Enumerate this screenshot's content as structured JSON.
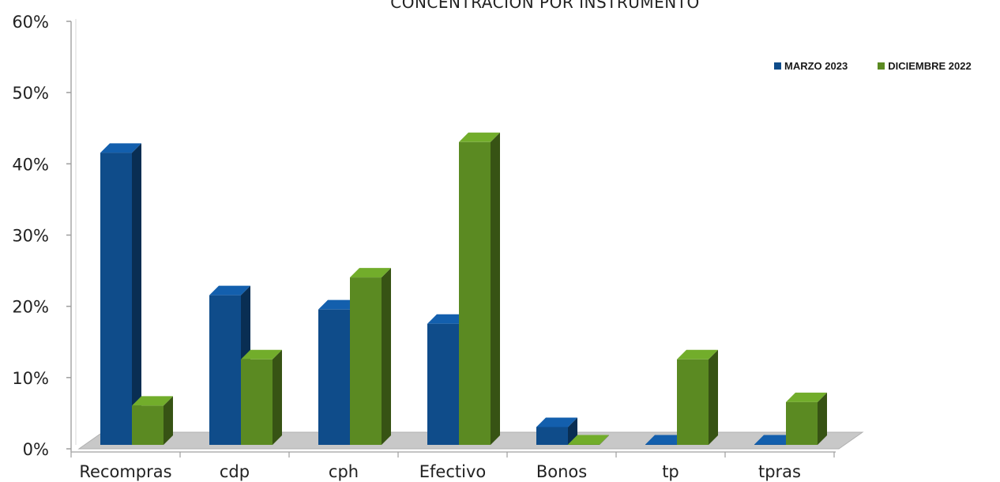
{
  "chart_data": {
    "type": "bar",
    "title": "CONCENTRACIÓN POR INSTRUMENTO",
    "categories": [
      "Recompras",
      "cdp",
      "cph",
      "Efectivo",
      "Bonos",
      "tp",
      "tpras"
    ],
    "series": [
      {
        "name": "MARZO 2023",
        "color": "#0f4c8a",
        "values": [
          41,
          21,
          19,
          17,
          2.5,
          0,
          0
        ]
      },
      {
        "name": "DICIEMBRE 2022",
        "color": "#5b8a22",
        "values": [
          5.5,
          12,
          23.5,
          42.5,
          0,
          12,
          6
        ]
      }
    ],
    "yticks": [
      "0%",
      "10%",
      "20%",
      "30%",
      "40%",
      "50%",
      "60%"
    ],
    "ylim": [
      0,
      60
    ],
    "grid": false,
    "legend_position": "top-right"
  }
}
